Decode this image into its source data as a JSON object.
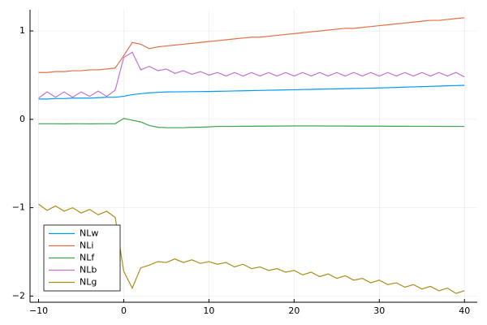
{
  "chart_data": {
    "type": "line",
    "x": [
      -10,
      -9,
      -8,
      -7,
      -6,
      -5,
      -4,
      -3,
      -2,
      -1,
      0,
      1,
      2,
      3,
      4,
      5,
      6,
      7,
      8,
      9,
      10,
      11,
      12,
      13,
      14,
      15,
      16,
      17,
      18,
      19,
      20,
      21,
      22,
      23,
      24,
      25,
      26,
      27,
      28,
      29,
      30,
      31,
      32,
      33,
      34,
      35,
      36,
      37,
      38,
      39,
      40
    ],
    "series": [
      {
        "name": "NLw",
        "color": "#009af9",
        "values": [
          0.23,
          0.23,
          0.235,
          0.235,
          0.24,
          0.24,
          0.24,
          0.245,
          0.25,
          0.25,
          0.26,
          0.28,
          0.29,
          0.3,
          0.305,
          0.31,
          0.311,
          0.312,
          0.313,
          0.314,
          0.315,
          0.317,
          0.319,
          0.321,
          0.323,
          0.325,
          0.327,
          0.329,
          0.331,
          0.333,
          0.335,
          0.337,
          0.339,
          0.341,
          0.343,
          0.345,
          0.347,
          0.349,
          0.351,
          0.353,
          0.355,
          0.358,
          0.361,
          0.364,
          0.367,
          0.37,
          0.373,
          0.376,
          0.379,
          0.382,
          0.385
        ]
      },
      {
        "name": "NLi",
        "color": "#e26f46",
        "values": [
          0.53,
          0.53,
          0.54,
          0.54,
          0.55,
          0.55,
          0.56,
          0.56,
          0.57,
          0.58,
          0.72,
          0.87,
          0.85,
          0.8,
          0.82,
          0.83,
          0.84,
          0.85,
          0.86,
          0.87,
          0.88,
          0.89,
          0.9,
          0.91,
          0.92,
          0.93,
          0.93,
          0.94,
          0.95,
          0.96,
          0.97,
          0.98,
          0.99,
          1.0,
          1.01,
          1.02,
          1.03,
          1.03,
          1.04,
          1.05,
          1.06,
          1.07,
          1.08,
          1.09,
          1.1,
          1.11,
          1.12,
          1.12,
          1.13,
          1.14,
          1.15
        ]
      },
      {
        "name": "NLf",
        "color": "#3da44d",
        "values": [
          -0.05,
          -0.05,
          -0.05,
          -0.052,
          -0.05,
          -0.05,
          -0.052,
          -0.05,
          -0.05,
          -0.05,
          0.01,
          -0.01,
          -0.03,
          -0.07,
          -0.09,
          -0.095,
          -0.095,
          -0.095,
          -0.09,
          -0.09,
          -0.085,
          -0.08,
          -0.08,
          -0.08,
          -0.078,
          -0.078,
          -0.077,
          -0.077,
          -0.076,
          -0.076,
          -0.075,
          -0.075,
          -0.075,
          -0.075,
          -0.076,
          -0.076,
          -0.076,
          -0.077,
          -0.077,
          -0.077,
          -0.077,
          -0.078,
          -0.078,
          -0.078,
          -0.079,
          -0.079,
          -0.079,
          -0.08,
          -0.08,
          -0.08,
          -0.08
        ]
      },
      {
        "name": "NLb",
        "color": "#c271d2",
        "values": [
          0.24,
          0.31,
          0.25,
          0.31,
          0.25,
          0.31,
          0.26,
          0.32,
          0.26,
          0.33,
          0.7,
          0.76,
          0.56,
          0.6,
          0.55,
          0.57,
          0.52,
          0.55,
          0.51,
          0.54,
          0.5,
          0.53,
          0.49,
          0.53,
          0.49,
          0.53,
          0.49,
          0.53,
          0.49,
          0.53,
          0.49,
          0.53,
          0.49,
          0.53,
          0.49,
          0.53,
          0.49,
          0.53,
          0.49,
          0.53,
          0.49,
          0.53,
          0.49,
          0.53,
          0.49,
          0.53,
          0.49,
          0.53,
          0.49,
          0.53,
          0.48
        ]
      },
      {
        "name": "NLg",
        "color": "#ac8d18",
        "values": [
          -0.96,
          -1.03,
          -0.98,
          -1.04,
          -1.0,
          -1.06,
          -1.02,
          -1.08,
          -1.04,
          -1.11,
          -1.72,
          -1.91,
          -1.68,
          -1.65,
          -1.61,
          -1.62,
          -1.58,
          -1.62,
          -1.59,
          -1.63,
          -1.61,
          -1.64,
          -1.62,
          -1.67,
          -1.64,
          -1.69,
          -1.67,
          -1.71,
          -1.69,
          -1.73,
          -1.71,
          -1.76,
          -1.73,
          -1.78,
          -1.75,
          -1.8,
          -1.77,
          -1.82,
          -1.8,
          -1.85,
          -1.82,
          -1.87,
          -1.85,
          -1.9,
          -1.87,
          -1.92,
          -1.89,
          -1.94,
          -1.91,
          -1.97,
          -1.94
        ]
      }
    ],
    "xlim": [
      -11,
      41.5
    ],
    "ylim": [
      -2.07,
      1.24
    ],
    "xticks": [
      {
        "value": -10,
        "label": "−10"
      },
      0,
      10,
      20,
      30,
      40
    ],
    "yticks": [
      {
        "value": -2,
        "label": "−2"
      },
      {
        "value": -1,
        "label": "−1"
      },
      0,
      1
    ],
    "grid": true,
    "legend": "bottom-left"
  }
}
